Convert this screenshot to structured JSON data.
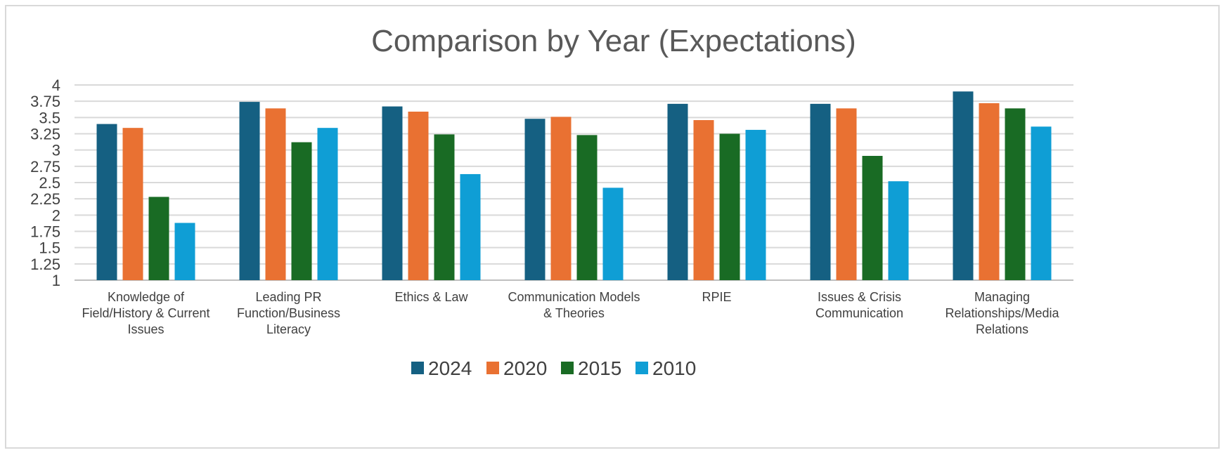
{
  "chart_data": {
    "type": "bar",
    "title": "Comparison by Year (Expectations)",
    "xlabel": "",
    "ylabel": "",
    "ylim": [
      1,
      4
    ],
    "yticks": [
      "1",
      "1.25",
      "1.5",
      "1.75",
      "2",
      "2.25",
      "2.5",
      "2.75",
      "3",
      "3.25",
      "3.5",
      "3.75",
      "4"
    ],
    "grid": true,
    "legend_position": "bottom",
    "categories": [
      [
        "Knowledge of",
        "Field/History & Current",
        "Issues"
      ],
      [
        "Leading PR",
        "Function/Business",
        "Literacy"
      ],
      [
        "Ethics & Law"
      ],
      [
        "Communication Models",
        "& Theories"
      ],
      [
        "RPIE"
      ],
      [
        "Issues & Crisis",
        "Communication"
      ],
      [
        "Managing",
        "Relationships/Media",
        "Relations"
      ]
    ],
    "series": [
      {
        "name": "2024",
        "color": "#156082",
        "values": [
          3.4,
          3.74,
          3.67,
          3.48,
          3.71,
          3.71,
          3.9
        ]
      },
      {
        "name": "2020",
        "color": "#E97132",
        "values": [
          3.34,
          3.64,
          3.59,
          3.51,
          3.46,
          3.64,
          3.72
        ]
      },
      {
        "name": "2015",
        "color": "#196B24",
        "values": [
          2.28,
          3.12,
          3.24,
          3.23,
          3.25,
          2.91,
          3.64
        ]
      },
      {
        "name": "2010",
        "color": "#0F9ED5",
        "values": [
          1.88,
          3.34,
          2.63,
          2.42,
          3.31,
          2.52,
          3.36
        ]
      }
    ]
  }
}
